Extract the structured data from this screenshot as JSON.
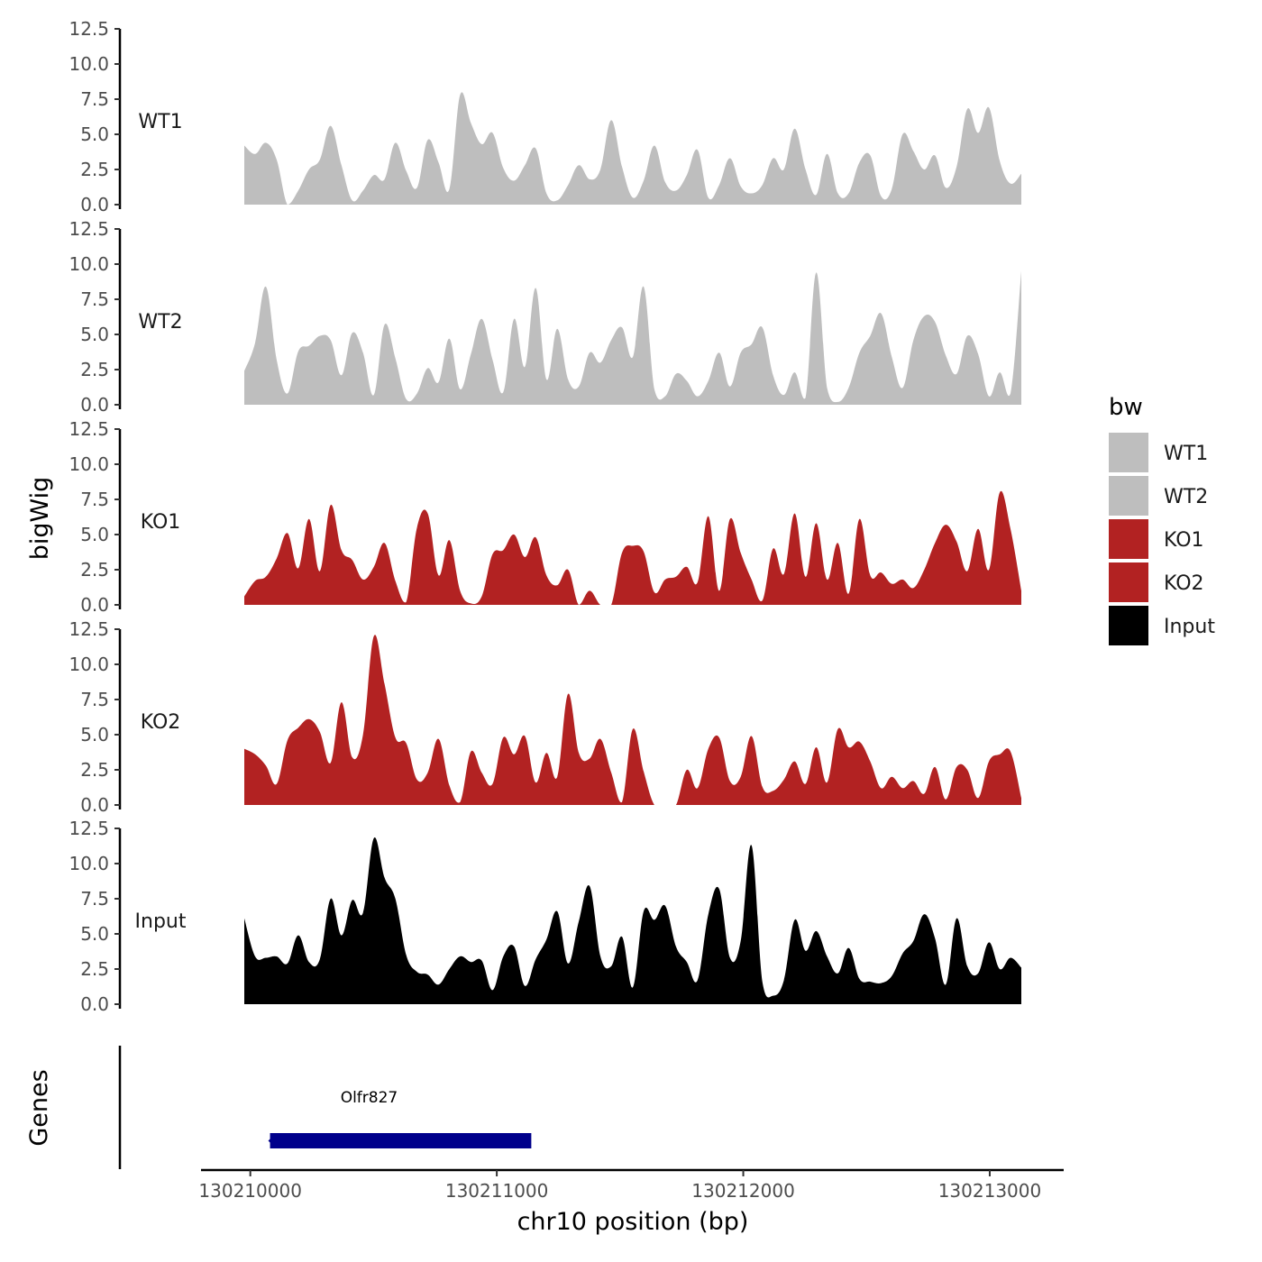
{
  "chart_data": {
    "type": "area",
    "ylabel": "bigWig",
    "xlabel": "chr10 position (bp)",
    "x_range": [
      130210080,
      130213100
    ],
    "xlim": [
      130209800,
      130213300
    ],
    "ylim": [
      0,
      12.5
    ],
    "y_ticks": [
      "0.0",
      "2.5",
      "5.0",
      "7.5",
      "10.0",
      "12.5"
    ],
    "x_ticks": [
      {
        "value": 130210000,
        "label": "130210000"
      },
      {
        "value": 130211000,
        "label": "130211000"
      },
      {
        "value": 130212000,
        "label": "130212000"
      },
      {
        "value": 130213000,
        "label": "130213000"
      }
    ],
    "legend": {
      "title": "bw",
      "entries": [
        {
          "label": "WT1",
          "color": "#bebebe"
        },
        {
          "label": "WT2",
          "color": "#bebebe"
        },
        {
          "label": "KO1",
          "color": "#b22222"
        },
        {
          "label": "KO2",
          "color": "#b22222"
        },
        {
          "label": "Input",
          "color": "#000000"
        }
      ]
    },
    "series": [
      {
        "name": "WT1",
        "color": "#bebebe",
        "values": [
          4.2,
          3.6,
          4.4,
          3.2,
          0,
          1.0,
          2.5,
          3.2,
          5.6,
          2.8,
          0.3,
          1.0,
          2.1,
          1.8,
          4.4,
          2.4,
          1.2,
          4.6,
          3.0,
          1.1,
          7.8,
          5.8,
          4.3,
          5.1,
          2.6,
          1.7,
          2.8,
          4.0,
          0.8,
          0.3,
          1.4,
          2.8,
          1.8,
          2.5,
          6.0,
          2.7,
          0.5,
          1.7,
          4.2,
          1.6,
          1.0,
          2.1,
          3.9,
          0.5,
          1.4,
          3.3,
          1.3,
          0.8,
          1.4,
          3.3,
          2.5,
          5.4,
          2.5,
          0.7,
          3.6,
          0.8,
          0.8,
          3.0,
          3.5,
          0.6,
          1.1,
          5.0,
          3.8,
          2.5,
          3.5,
          1.2,
          2.7,
          6.8,
          5.1,
          6.9,
          3.1,
          1.5,
          2.2
        ]
      },
      {
        "name": "WT2",
        "color": "#bebebe",
        "values": [
          2.4,
          4.4,
          8.4,
          3.2,
          0.8,
          3.8,
          4.2,
          4.9,
          4.6,
          2.1,
          5.1,
          3.7,
          0.7,
          5.7,
          3.3,
          0.4,
          0.8,
          2.6,
          1.6,
          4.7,
          1.1,
          3.6,
          6.1,
          3.2,
          0.9,
          6.1,
          2.7,
          8.3,
          1.8,
          5.4,
          1.8,
          1.3,
          3.7,
          3.0,
          4.6,
          5.5,
          3.4,
          8.4,
          1.1,
          0.6,
          2.2,
          1.7,
          0.6,
          1.7,
          3.7,
          1.3,
          3.7,
          4.3,
          5.5,
          2.1,
          0.7,
          2.3,
          0.5,
          9.4,
          1.2,
          0.2,
          1.2,
          3.7,
          4.9,
          6.5,
          3.4,
          1.2,
          4.6,
          6.3,
          5.9,
          3.5,
          2.2,
          4.9,
          3.6,
          0.6,
          2.3,
          0.8,
          9.5
        ]
      },
      {
        "name": "KO1",
        "color": "#b22222",
        "values": [
          0.6,
          1.7,
          2.0,
          3.3,
          5.1,
          2.6,
          6.1,
          2.4,
          7.1,
          3.9,
          3.2,
          1.8,
          2.7,
          4.4,
          1.7,
          0.2,
          5.5,
          6.5,
          2.1,
          4.6,
          1.0,
          0.1,
          0.6,
          3.6,
          3.9,
          5.0,
          3.4,
          4.8,
          2.1,
          1.4,
          2.5,
          0,
          1.0,
          0,
          0,
          3.7,
          4.2,
          3.8,
          0.9,
          1.8,
          2.0,
          2.7,
          1.6,
          6.3,
          1.0,
          6.1,
          3.7,
          1.8,
          0.3,
          4.0,
          2.2,
          6.5,
          2.0,
          5.8,
          1.8,
          4.4,
          0.8,
          6.1,
          2.1,
          2.3,
          1.5,
          1.8,
          1.2,
          2.5,
          4.4,
          5.7,
          4.5,
          2.4,
          5.4,
          2.5,
          8.0,
          5.4,
          1.0
        ]
      },
      {
        "name": "KO2",
        "color": "#b22222",
        "values": [
          4.0,
          3.6,
          2.8,
          1.5,
          4.6,
          5.5,
          6.1,
          5.2,
          3.0,
          7.3,
          3.4,
          5.0,
          12.0,
          8.6,
          4.8,
          4.4,
          1.8,
          2.3,
          4.7,
          1.4,
          0.2,
          3.8,
          2.3,
          1.5,
          4.8,
          3.6,
          4.9,
          1.6,
          3.7,
          2.0,
          7.9,
          3.7,
          3.3,
          4.7,
          2.3,
          0.2,
          5.4,
          2.4,
          0,
          0,
          0,
          2.5,
          1.2,
          4.0,
          4.8,
          1.7,
          2.0,
          4.9,
          1.3,
          1.0,
          1.8,
          3.1,
          1.5,
          4.1,
          1.6,
          5.4,
          4.1,
          4.5,
          3.1,
          1.2,
          2.0,
          1.2,
          1.7,
          0.8,
          2.7,
          0.4,
          2.7,
          2.5,
          0.5,
          3.1,
          3.6,
          3.8,
          0.5
        ]
      },
      {
        "name": "Input",
        "color": "#000000",
        "values": [
          6.1,
          3.4,
          3.3,
          3.4,
          2.9,
          4.9,
          3.0,
          3.2,
          7.5,
          4.9,
          7.4,
          6.5,
          11.8,
          9.0,
          7.5,
          3.5,
          2.3,
          2.1,
          1.4,
          2.5,
          3.4,
          3.0,
          3.1,
          1.0,
          3.4,
          4.1,
          1.3,
          3.2,
          4.6,
          6.6,
          2.9,
          5.9,
          8.4,
          3.4,
          2.7,
          4.8,
          1.2,
          6.6,
          6.0,
          7.0,
          4.1,
          3.0,
          1.7,
          6.4,
          8.2,
          3.3,
          4.5,
          11.3,
          1.6,
          0.6,
          1.7,
          6.0,
          3.8,
          5.2,
          3.4,
          2.2,
          4.0,
          1.8,
          1.6,
          1.5,
          2.0,
          3.6,
          4.5,
          6.4,
          4.7,
          1.4,
          6.1,
          2.7,
          2.2,
          4.4,
          2.5,
          3.3,
          2.6
        ]
      }
    ],
    "genes_track": {
      "ylabel": "Genes",
      "genes": [
        {
          "name": "Olfr827",
          "start": 130210080,
          "end": 130211140,
          "color": "#00008b"
        }
      ]
    }
  }
}
